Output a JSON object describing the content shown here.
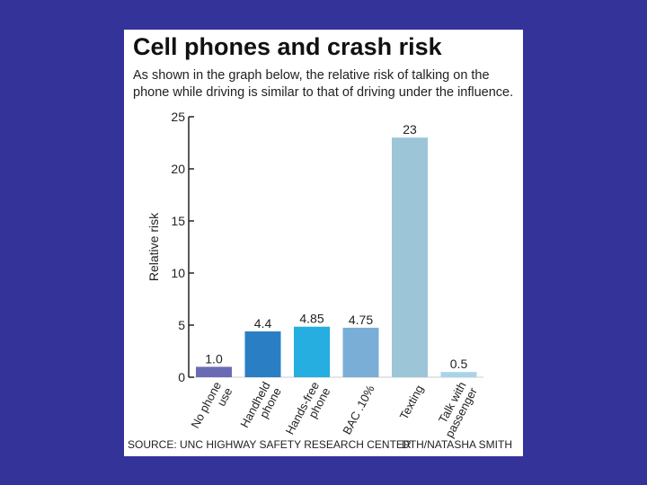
{
  "colors": {
    "background": "#333399",
    "card": "#ffffff"
  },
  "footer": {
    "source": "SOURCE: UNC HIGHWAY SAFETY RESEARCH CENTER",
    "credit": "DTH/NATASHA SMITH"
  },
  "chart_data": {
    "type": "bar",
    "title": "Cell phones and crash risk",
    "subtitle": "As shown in the graph below, the relative risk of talking on the phone while driving is similar to that of driving under the influence.",
    "ylabel": "Relative risk",
    "xlabel": "",
    "ylim": [
      0,
      25
    ],
    "yticks": [
      "0",
      "5",
      "10",
      "15",
      "20",
      "25"
    ],
    "grid": false,
    "categories": [
      [
        "No phone",
        "use"
      ],
      [
        "Handheld",
        "phone"
      ],
      [
        "Hands-free",
        "phone"
      ],
      [
        "BAC .10%"
      ],
      [
        "Texting"
      ],
      [
        "Talk with",
        "passenger"
      ]
    ],
    "values": [
      1.0,
      4.4,
      4.85,
      4.75,
      23,
      0.5
    ],
    "value_labels": [
      "1.0",
      "4.4",
      "4.85",
      "4.75",
      "23",
      "0.5"
    ],
    "bar_colors": [
      "#6a6bb5",
      "#2a7fc4",
      "#26aee0",
      "#7aaed6",
      "#9cc5d8",
      "#a8d4ea"
    ]
  }
}
